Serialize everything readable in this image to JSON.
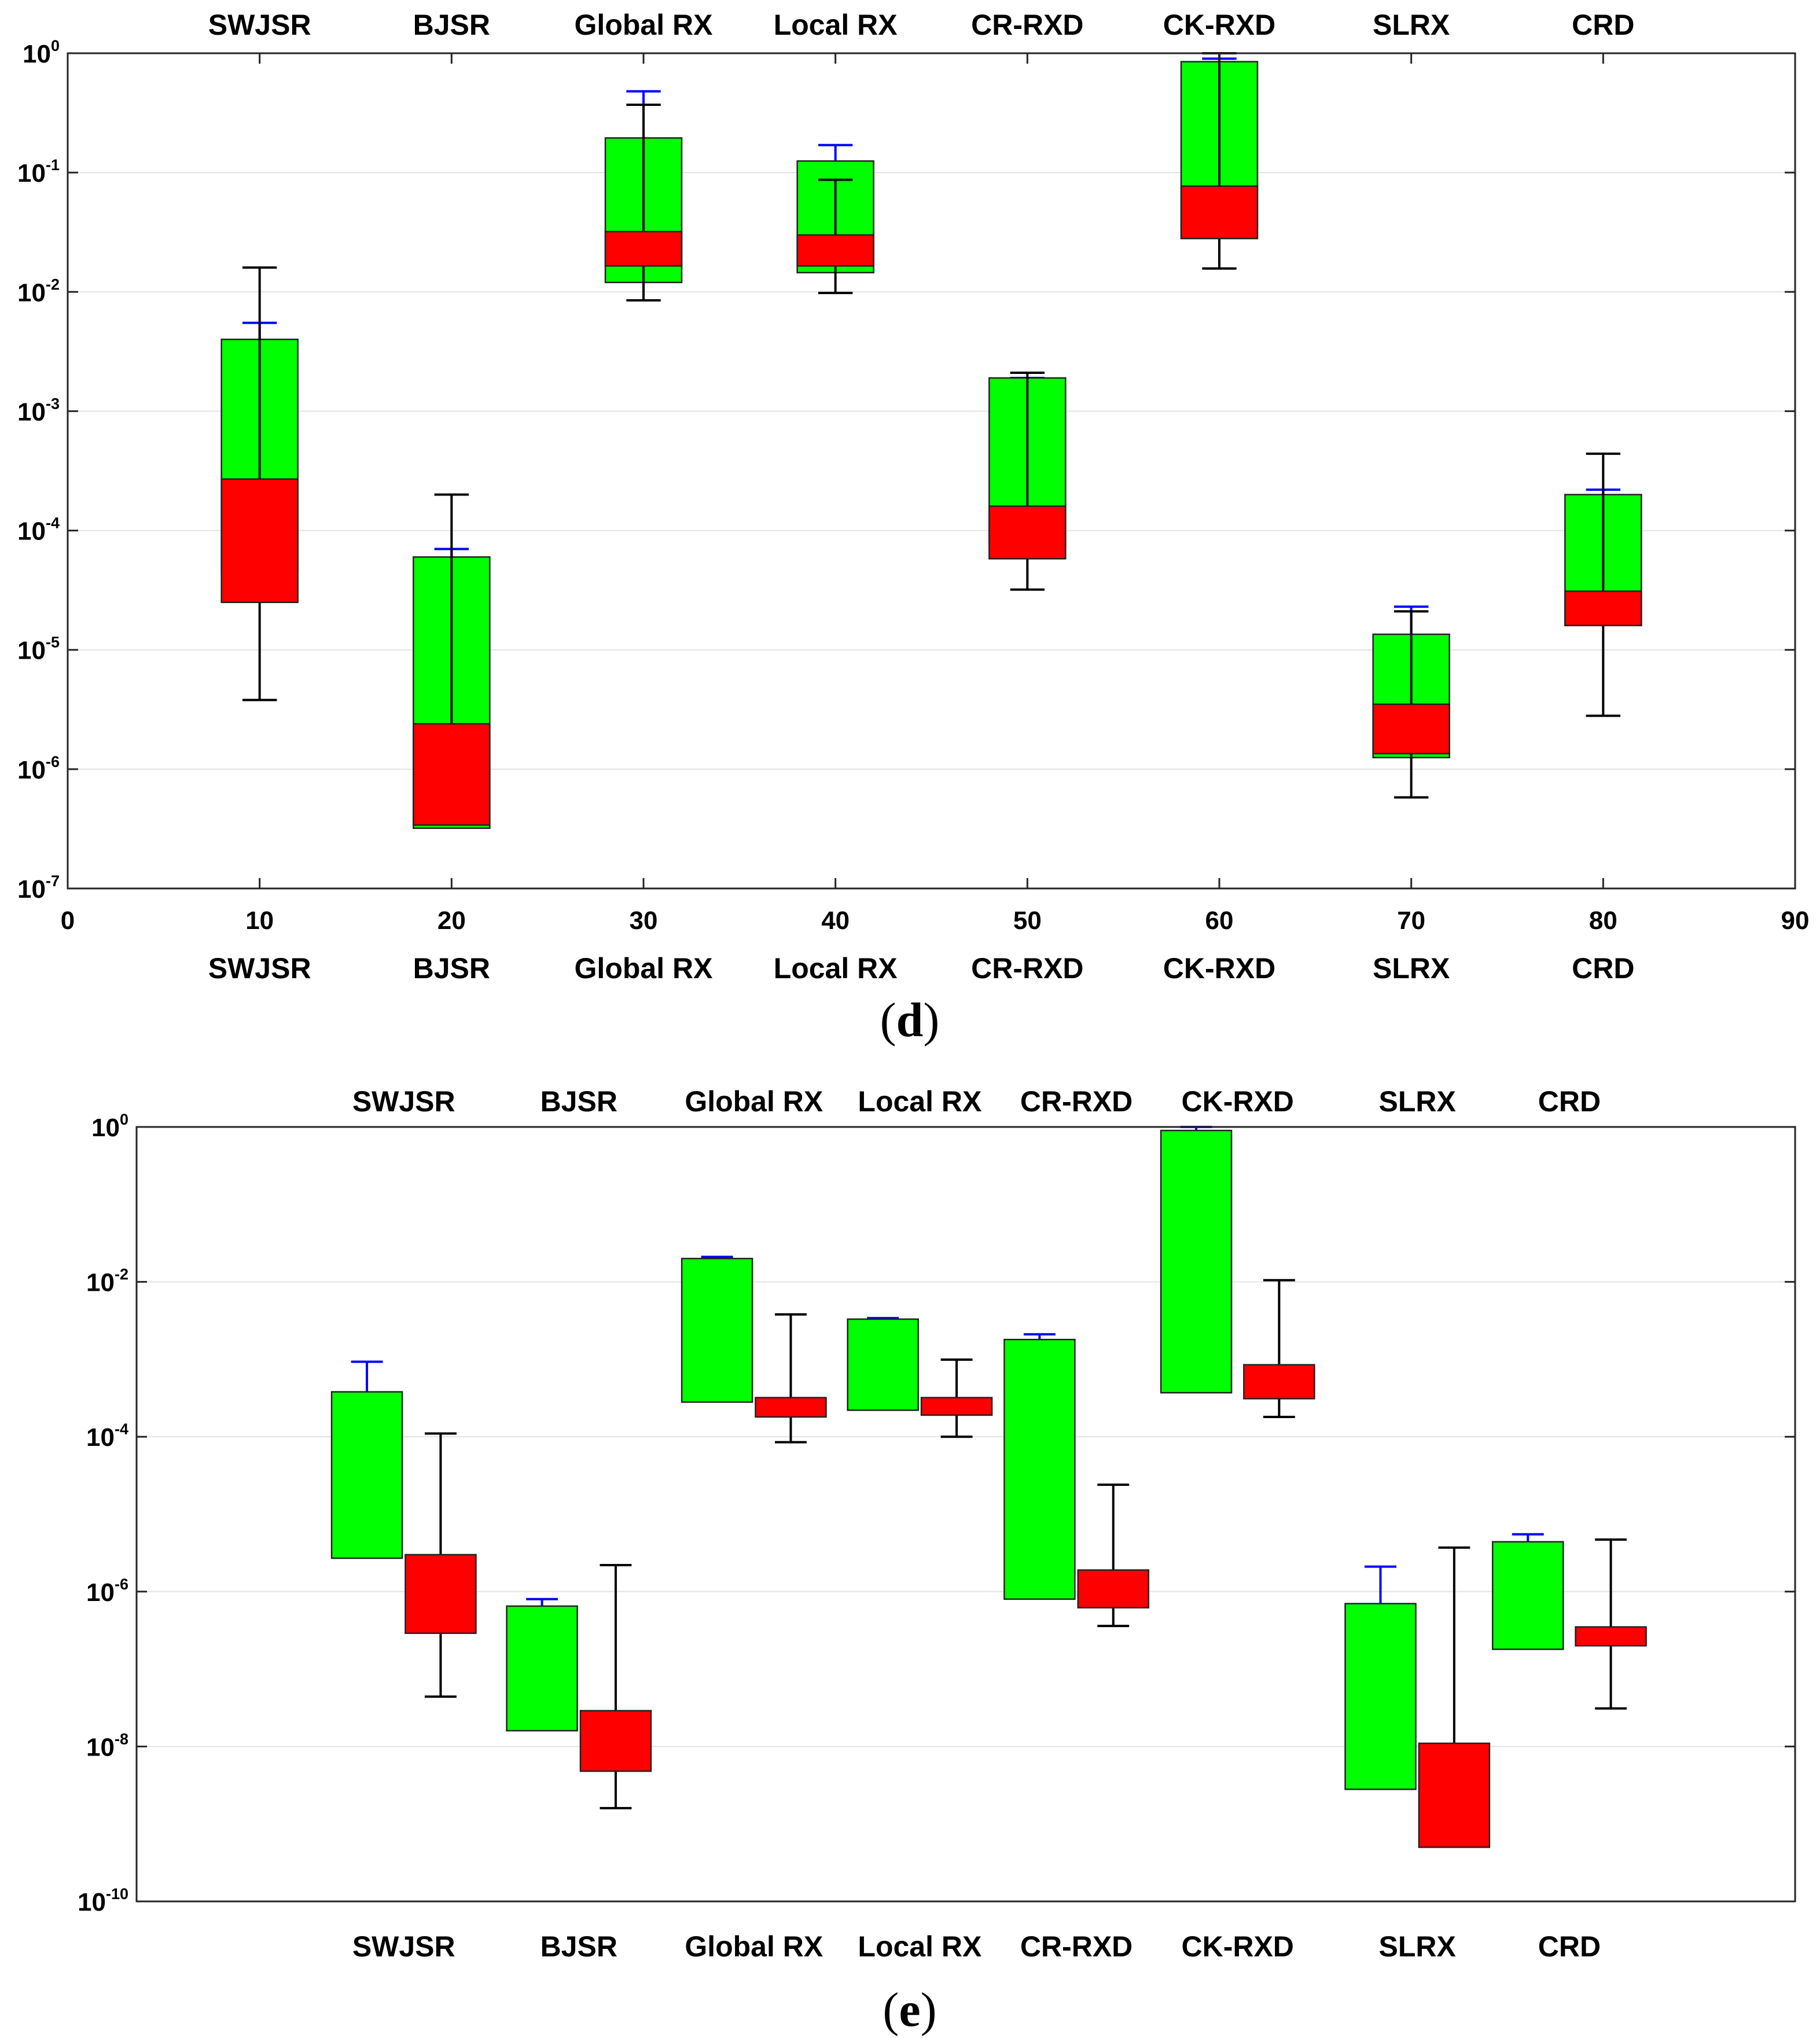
{
  "chart_data": [
    {
      "panel": "d",
      "type": "boxplot",
      "categories": [
        "SWJSR",
        "BJSR",
        "Global RX",
        "Local RX",
        "CR-RXD",
        "CK-RXD",
        "SLRX",
        "CRD"
      ],
      "top_labels": [
        "SWJSR",
        "BJSR",
        "Global RX",
        "Local RX",
        "CR-RXD",
        "CK-RXD",
        "SLRX",
        "CRD"
      ],
      "bottom_labels": [
        "SWJSR",
        "BJSR",
        "Global RX",
        "Local RX",
        "CR-RXD",
        "CK-RXD",
        "SLRX",
        "CRD"
      ],
      "x_ticks": [
        "0",
        "10",
        "20",
        "30",
        "40",
        "50",
        "60",
        "70",
        "80",
        "90"
      ],
      "xlim": [
        0,
        90
      ],
      "yscale": "log",
      "ylim_exp": [
        -7,
        0
      ],
      "y_tick_exps": [
        -7,
        -6,
        -5,
        -4,
        -3,
        -2,
        -1,
        0
      ],
      "grid": true,
      "series": [
        {
          "name": "green",
          "color": "#00ff00",
          "whisker_color": "#0000ff",
          "x": [
            10,
            20,
            30,
            40,
            50,
            60,
            70,
            80
          ],
          "box_low": [
            4.5e-05,
            3.2e-07,
            0.012,
            0.0145,
            7.5e-05,
            0.034,
            1.25e-06,
            1.6e-05
          ],
          "box_high": [
            0.004,
            6e-05,
            0.195,
            0.125,
            0.0019,
            0.85,
            1.35e-05,
            0.0002
          ],
          "whisker_high": [
            0.0055,
            7e-05,
            0.48,
            0.17,
            0.0019,
            0.9,
            2.3e-05,
            0.00022
          ],
          "whisker_low": [
            4.5e-05,
            3.2e-07,
            0.012,
            0.0145,
            7.5e-05,
            0.034,
            1.25e-06,
            1.6e-05
          ]
        },
        {
          "name": "red",
          "color": "#ff0000",
          "whisker_color": "#000000",
          "x": [
            10,
            20,
            30,
            40,
            50,
            60,
            70,
            80
          ],
          "box_low": [
            2.5e-05,
            3.4e-07,
            0.0165,
            0.0165,
            5.8e-05,
            0.028,
            1.35e-06,
            1.6e-05
          ],
          "box_high": [
            0.00027,
            2.4e-06,
            0.032,
            0.03,
            0.00016,
            0.077,
            3.5e-06,
            3.1e-05
          ],
          "whisker_high": [
            0.016,
            0.0002,
            0.37,
            0.087,
            0.0021,
            1.0,
            2.1e-05,
            0.00044
          ],
          "whisker_low": [
            3.8e-06,
            3.4e-07,
            0.0085,
            0.0098,
            3.2e-05,
            0.0157,
            5.8e-07,
            2.8e-06
          ]
        }
      ]
    },
    {
      "panel": "e",
      "type": "boxplot",
      "categories": [
        "SWJSR",
        "BJSR",
        "Global RX",
        "Local RX",
        "CR-RXD",
        "CK-RXD",
        "SLRX",
        "CRD"
      ],
      "top_labels": [
        "SWJSR",
        "BJSR",
        "Global RX",
        "Local RX",
        "CR-RXD",
        "CK-RXD",
        "SLRX",
        "CRD"
      ],
      "bottom_labels": [
        "SWJSR",
        "BJSR",
        "Global RX",
        "Local RX",
        "CR-RXD",
        "CK-RXD",
        "SLRX",
        "CRD"
      ],
      "x_ticks": [],
      "xlim": [
        0,
        90
      ],
      "yscale": "log",
      "ylim_exp": [
        -10,
        0
      ],
      "y_tick_exps": [
        -10,
        -8,
        -6,
        -4,
        -2,
        0
      ],
      "grid": true,
      "series": [
        {
          "name": "green",
          "color": "#00ff00",
          "whisker_color": "#0000ff",
          "x": [
            12.5,
            22,
            31.5,
            40.5,
            49,
            57.5,
            67.5,
            75.5
          ],
          "box_low": [
            2.7e-06,
            1.6e-08,
            0.00028,
            0.00022,
            8e-07,
            0.00037,
            2.8e-09,
            1.8e-07
          ],
          "box_high": [
            0.00038,
            6.5e-07,
            0.02,
            0.0033,
            0.0018,
            0.9,
            7e-07,
            4.4e-06
          ],
          "whisker_high": [
            0.00093,
            8e-07,
            0.021,
            0.0034,
            0.0021,
            1.0,
            2.1e-06,
            5.5e-06
          ],
          "whisker_low": [
            2.7e-06,
            1.6e-08,
            0.00028,
            0.00022,
            8e-07,
            0.00037,
            2.8e-09,
            1.8e-07
          ]
        },
        {
          "name": "red",
          "color": "#ff0000",
          "whisker_color": "#000000",
          "x": [
            16.5,
            26,
            35.5,
            44.5,
            53,
            62,
            71.5,
            80
          ],
          "box_low": [
            2.9e-07,
            4.8e-09,
            0.00018,
            0.00019,
            6.2e-07,
            0.00031,
            5e-10,
            2e-07
          ],
          "box_high": [
            3e-06,
            2.9e-08,
            0.00032,
            0.00032,
            1.9e-06,
            0.00085,
            1.1e-08,
            3.5e-07
          ],
          "whisker_high": [
            0.00011,
            2.2e-06,
            0.0038,
            0.00099,
            2.4e-05,
            0.0105,
            3.7e-06,
            4.7e-06
          ],
          "whisker_low": [
            4.4e-08,
            1.6e-09,
            8.5e-05,
            0.0001,
            3.6e-07,
            0.00018,
            5e-10,
            3.1e-08
          ]
        }
      ]
    }
  ],
  "captions": {
    "d": "d",
    "e": "e"
  }
}
